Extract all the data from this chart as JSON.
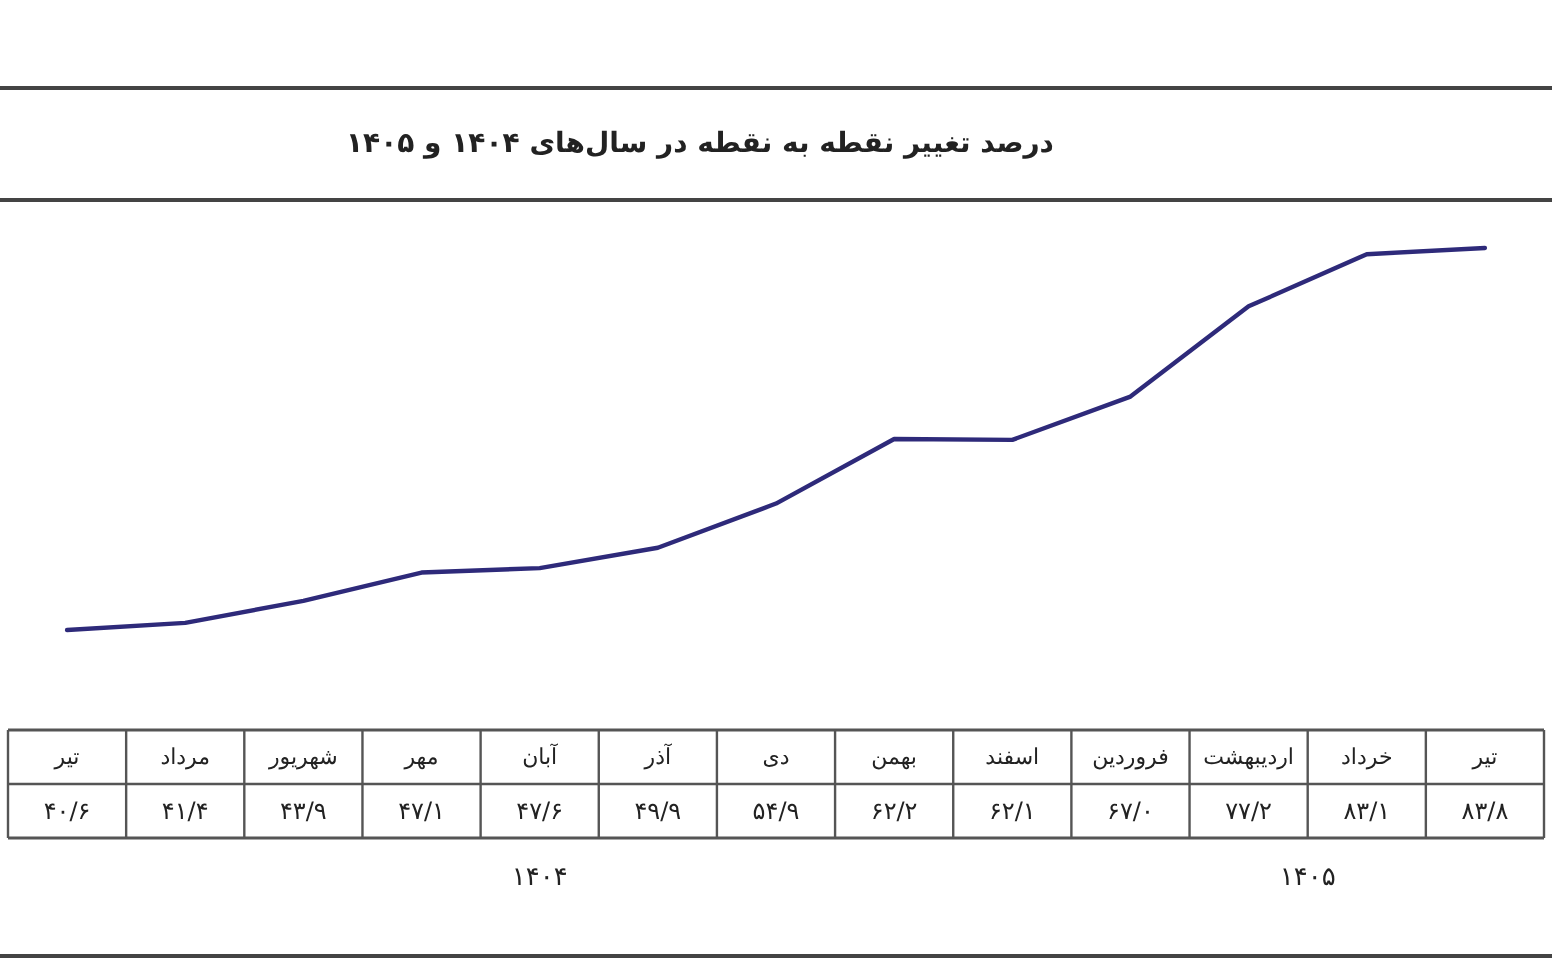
{
  "chart_data": {
    "type": "line",
    "title": "درصد تغییر نقطه به نقطه در سال‌های ۱۴۰۴ و ۱۴۰۵",
    "categories": [
      "تیر",
      "مرداد",
      "شهریور",
      "مهر",
      "آبان",
      "آذر",
      "دی",
      "بهمن",
      "اسفند",
      "فروردین",
      "اردیبهشت",
      "خرداد",
      "تیر"
    ],
    "values": [
      40.6,
      41.4,
      43.9,
      47.1,
      47.6,
      49.9,
      54.9,
      62.2,
      62.1,
      67.0,
      77.2,
      83.1,
      83.8
    ],
    "value_labels": [
      "۴۰/۶",
      "۴۱/۴",
      "۴۳/۹",
      "۴۷/۱",
      "۴۷/۶",
      "۴۹/۹",
      "۵۴/۹",
      "۶۲/۲",
      "۶۲/۱",
      "۶۷/۰",
      "۷۷/۲",
      "۸۳/۱",
      "۸۳/۸"
    ],
    "color": "#2e2a7a",
    "annotations": [
      "۱۴۰۴",
      "۱۴۰۵"
    ]
  }
}
